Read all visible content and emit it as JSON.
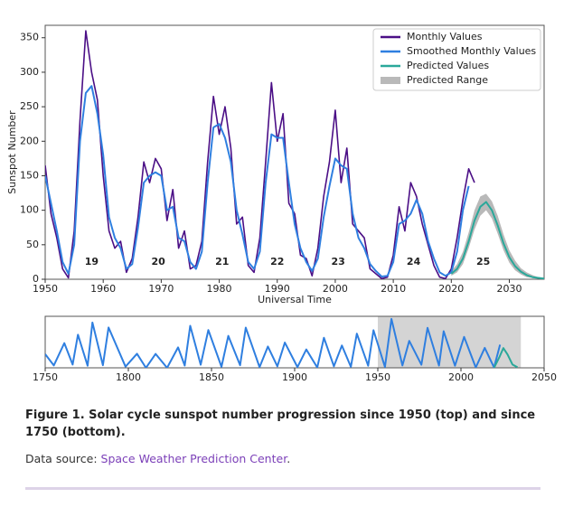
{
  "chart_data": [
    {
      "type": "line",
      "xlabel": "Universal Time",
      "ylabel": "Sunspot Number",
      "xlim": [
        1950,
        2036
      ],
      "xticks": [
        1950,
        1960,
        1970,
        1980,
        1990,
        2000,
        2010,
        2020,
        2030
      ],
      "ylim": [
        0,
        368
      ],
      "yticks": [
        0,
        50,
        100,
        150,
        200,
        250,
        300,
        350
      ],
      "legend": "upper right",
      "series": [
        {
          "name": "Monthly Values",
          "color": "#4b0f86",
          "x": [
            1950,
            1951,
            1952,
            1953,
            1954,
            1955,
            1956,
            1957,
            1958,
            1959,
            1960,
            1961,
            1962,
            1963,
            1964,
            1965,
            1966,
            1967,
            1968,
            1969,
            1970,
            1971,
            1972,
            1973,
            1974,
            1975,
            1976,
            1977,
            1978,
            1979,
            1980,
            1981,
            1982,
            1983,
            1984,
            1985,
            1986,
            1987,
            1988,
            1989,
            1990,
            1991,
            1992,
            1993,
            1994,
            1995,
            1996,
            1997,
            1998,
            1999,
            2000,
            2001,
            2002,
            2003,
            2004,
            2005,
            2006,
            2007,
            2008,
            2009,
            2010,
            2011,
            2012,
            2013,
            2014,
            2015,
            2016,
            2017,
            2018,
            2019,
            2020,
            2021,
            2022,
            2023,
            2024
          ],
          "values": [
            165,
            95,
            60,
            15,
            2,
            70,
            230,
            360,
            300,
            260,
            150,
            70,
            45,
            55,
            10,
            30,
            90,
            170,
            140,
            175,
            160,
            85,
            130,
            45,
            70,
            15,
            20,
            55,
            170,
            265,
            210,
            250,
            190,
            80,
            90,
            20,
            10,
            60,
            170,
            285,
            200,
            240,
            110,
            95,
            35,
            30,
            5,
            45,
            120,
            170,
            245,
            140,
            190,
            80,
            70,
            60,
            15,
            8,
            1,
            3,
            35,
            105,
            70,
            140,
            120,
            80,
            50,
            20,
            3,
            1,
            15,
            60,
            115,
            160,
            140
          ]
        },
        {
          "name": "Smoothed Monthly Values",
          "color": "#2f7fe0",
          "x": [
            1950,
            1951,
            1952,
            1953,
            1954,
            1955,
            1956,
            1957,
            1958,
            1959,
            1960,
            1961,
            1962,
            1963,
            1964,
            1965,
            1966,
            1967,
            1968,
            1969,
            1970,
            1971,
            1972,
            1973,
            1974,
            1975,
            1976,
            1977,
            1978,
            1979,
            1980,
            1981,
            1982,
            1983,
            1984,
            1985,
            1986,
            1987,
            1988,
            1989,
            1990,
            1991,
            1992,
            1993,
            1994,
            1995,
            1996,
            1997,
            1998,
            1999,
            2000,
            2001,
            2002,
            2003,
            2004,
            2005,
            2006,
            2007,
            2008,
            2009,
            2010,
            2011,
            2012,
            2013,
            2014,
            2015,
            2016,
            2017,
            2018,
            2019,
            2020,
            2021,
            2022,
            2023
          ],
          "values": [
            150,
            110,
            70,
            25,
            8,
            50,
            200,
            270,
            280,
            240,
            180,
            90,
            60,
            45,
            15,
            22,
            75,
            140,
            150,
            155,
            150,
            100,
            105,
            60,
            55,
            25,
            15,
            40,
            140,
            220,
            225,
            205,
            170,
            100,
            65,
            25,
            15,
            40,
            140,
            210,
            205,
            205,
            140,
            80,
            45,
            25,
            12,
            30,
            90,
            135,
            175,
            165,
            160,
            95,
            60,
            45,
            22,
            12,
            4,
            5,
            25,
            80,
            85,
            95,
            115,
            95,
            55,
            30,
            10,
            5,
            10,
            40,
            100,
            135
          ]
        },
        {
          "name": "Predicted Values",
          "color": "#2aa89a",
          "x": [
            2020,
            2021,
            2022,
            2023,
            2024,
            2025,
            2026,
            2027,
            2028,
            2029,
            2030,
            2031,
            2032,
            2033,
            2034,
            2035,
            2036
          ],
          "values": [
            8,
            15,
            30,
            55,
            85,
            105,
            112,
            100,
            78,
            52,
            32,
            19,
            11,
            6,
            3,
            2,
            1
          ]
        },
        {
          "name": "Predicted Range",
          "color": "#b9b9b9",
          "range": true,
          "x": [
            2020,
            2021,
            2022,
            2023,
            2024,
            2025,
            2026,
            2027,
            2028,
            2029,
            2030,
            2031,
            2032,
            2033,
            2034,
            2035,
            2036
          ],
          "lower": [
            5,
            10,
            22,
            45,
            72,
            92,
            100,
            88,
            66,
            42,
            24,
            13,
            7,
            3,
            2,
            1,
            0
          ],
          "upper": [
            12,
            22,
            40,
            68,
            100,
            120,
            124,
            113,
            92,
            65,
            42,
            27,
            16,
            10,
            6,
            3,
            2
          ]
        }
      ],
      "annotations": [
        {
          "text": "19",
          "x": 1958,
          "y": 25
        },
        {
          "text": "20",
          "x": 1969.5,
          "y": 25
        },
        {
          "text": "21",
          "x": 1980.5,
          "y": 25
        },
        {
          "text": "22",
          "x": 1990,
          "y": 25
        },
        {
          "text": "23",
          "x": 2000.5,
          "y": 25
        },
        {
          "text": "24",
          "x": 2013.5,
          "y": 25
        },
        {
          "text": "25",
          "x": 2025.5,
          "y": 25
        }
      ]
    },
    {
      "type": "line",
      "xlim": [
        1750,
        2050
      ],
      "xticks": [
        1750,
        1800,
        1850,
        1900,
        1950,
        2000,
        2050
      ],
      "ylim": [
        0,
        300
      ],
      "shaded_span": [
        1950,
        2036
      ],
      "series": [
        {
          "name": "Smoothed Monthly Values",
          "color": "#2f7fe0",
          "x": [
            1750,
            1755.2,
            1761.5,
            1766.5,
            1769.7,
            1775.5,
            1778.4,
            1784.7,
            1788.1,
            1798.3,
            1805.2,
            1810.6,
            1816.4,
            1823.3,
            1829.9,
            1833.9,
            1837.2,
            1843.5,
            1848.1,
            1856,
            1860.1,
            1867.2,
            1870.6,
            1878.9,
            1883.9,
            1889.6,
            1894.1,
            1901.7,
            1907,
            1913.6,
            1917.6,
            1923.6,
            1928.4,
            1933.8,
            1937.4,
            1944.2,
            1947.4,
            1954.3,
            1958.2,
            1964.8,
            1968.9,
            1976.2,
            1979.9,
            1986.8,
            1989.6,
            1996.4,
            2001.9,
            2008.9,
            2014.3,
            2019.9,
            2023.5
          ],
          "values": [
            80,
            14,
            144,
            19,
            193,
            12,
            264,
            15,
            235,
            7,
            82,
            0,
            81,
            0,
            119,
            13,
            245,
            18,
            220,
            6,
            186,
            15,
            234,
            4,
            124,
            9,
            147,
            4,
            107,
            2,
            175,
            9,
            130,
            6,
            199,
            12,
            219,
            5,
            285,
            14,
            157,
            18,
            233,
            13,
            213,
            12,
            180,
            2,
            116,
            2,
            135
          ]
        },
        {
          "name": "Predicted Values",
          "color": "#2aa89a",
          "x": [
            2020,
            2023,
            2025.5,
            2028,
            2031,
            2034
          ],
          "values": [
            2,
            60,
            115,
            78,
            19,
            3
          ]
        }
      ]
    }
  ],
  "caption": {
    "title": "Figure 1. Solar cycle sunspot number progression since 1950 (top) and since 1750 (bottom).",
    "source_prefix": "Data source: ",
    "source_link": "Space Weather Prediction Center",
    "source_suffix": "."
  }
}
